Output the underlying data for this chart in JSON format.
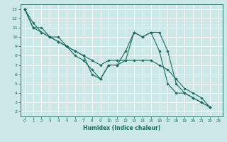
{
  "xlabel": "Humidex (Indice chaleur)",
  "xlim": [
    -0.5,
    23.5
  ],
  "ylim": [
    1.5,
    13.5
  ],
  "xticks": [
    0,
    1,
    2,
    3,
    4,
    5,
    6,
    7,
    8,
    9,
    10,
    11,
    12,
    13,
    14,
    15,
    16,
    17,
    18,
    19,
    20,
    21,
    22,
    23
  ],
  "yticks": [
    2,
    3,
    4,
    5,
    6,
    7,
    8,
    9,
    10,
    11,
    12,
    13
  ],
  "bg_color": "#cce9e7",
  "line_color": "#1a6b5e",
  "grid_color": "#ffffff",
  "series": [
    [
      13,
      11,
      11,
      10,
      10,
      9,
      8,
      7.5,
      6.5,
      5.5,
      7,
      7,
      8.5,
      10.5,
      10,
      10.5,
      10.5,
      8.5,
      5,
      4,
      3.5,
      3,
      2.5
    ],
    [
      13,
      11,
      10.5,
      10,
      9.5,
      9,
      8.5,
      8,
      6,
      5.5,
      7,
      7,
      7.5,
      10.5,
      10,
      10.5,
      8.5,
      5,
      4,
      4,
      3.5,
      3,
      2.5
    ],
    [
      13,
      11.5,
      10.5,
      10,
      9.5,
      9,
      8.5,
      8,
      7.5,
      7,
      7.5,
      7.5,
      7.5,
      7.5,
      7.5,
      7.5,
      7,
      6.5,
      5.5,
      4.5,
      4,
      3.5,
      2.5
    ]
  ]
}
